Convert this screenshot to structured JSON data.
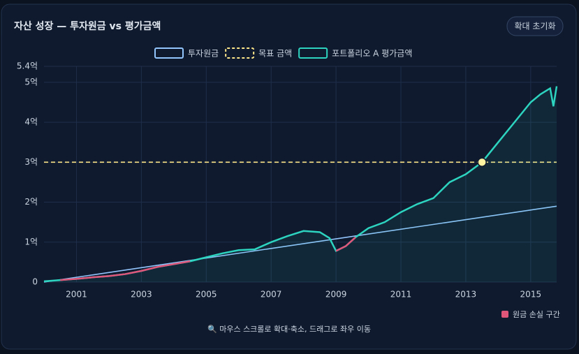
{
  "chart_data": {
    "type": "line",
    "title": "자산 성장 — 투자원금 vs 평가금액",
    "reset_button": "확대 초기화",
    "hint": "🔍 마우스 스크롤로 확대·축소, 드래그로 좌우 이동",
    "loss_legend": {
      "label": "원금 손실 구간",
      "color": "#e0567a"
    },
    "xlim": [
      2000,
      2015.8
    ],
    "xticks": [
      2001,
      2003,
      2005,
      2007,
      2009,
      2011,
      2013,
      2015
    ],
    "ylim": [
      0,
      5.4
    ],
    "yticks": [
      0,
      {
        "value": 1,
        "label": "1억"
      },
      {
        "value": 2,
        "label": "2억"
      },
      {
        "value": 3,
        "label": "3억"
      },
      {
        "value": 4,
        "label": "4억"
      },
      {
        "value": 5,
        "label": "5억"
      },
      {
        "value": 5.4,
        "label": "5.4억"
      }
    ],
    "grid": true,
    "target_hit": {
      "x": 2013.5,
      "y": 3
    },
    "series": [
      {
        "name": "투자원금",
        "color": "#93c5fd",
        "line_style": "solid",
        "x": [
          2000,
          2015.8
        ],
        "values": [
          0,
          1.9
        ]
      },
      {
        "name": "목표 금액",
        "color": "#fde68a",
        "line_style": "dashed",
        "x": [
          2000,
          2015.8
        ],
        "values": [
          3,
          3
        ]
      },
      {
        "name": "포트폴리오 A 평가금액",
        "color": "#2dd4bf",
        "line_style": "solid",
        "x": [
          2000,
          2000.5,
          2001,
          2001.5,
          2002,
          2002.5,
          2003,
          2003.5,
          2004,
          2004.5,
          2005,
          2005.5,
          2006,
          2006.5,
          2007,
          2007.5,
          2008,
          2008.5,
          2008.8,
          2009,
          2009.3,
          2009.6,
          2010,
          2010.5,
          2011,
          2011.5,
          2012,
          2012.5,
          2013,
          2013.5,
          2014,
          2014.5,
          2015,
          2015.3,
          2015.6,
          2015.7,
          2015.8
        ],
        "values": [
          0.02,
          0.05,
          0.08,
          0.12,
          0.15,
          0.2,
          0.28,
          0.38,
          0.45,
          0.52,
          0.62,
          0.72,
          0.8,
          0.82,
          1.0,
          1.15,
          1.28,
          1.25,
          1.1,
          0.78,
          0.9,
          1.12,
          1.35,
          1.5,
          1.75,
          1.95,
          2.1,
          2.5,
          2.7,
          3.0,
          3.5,
          4.0,
          4.5,
          4.7,
          4.85,
          4.4,
          4.9
        ]
      }
    ]
  }
}
